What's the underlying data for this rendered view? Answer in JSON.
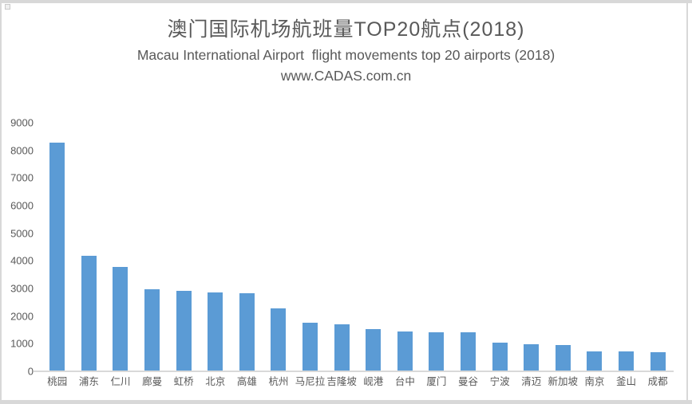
{
  "page": {
    "title_cn": "澳门国际机场航班量TOP20航点(2018)",
    "subtitle_en": "Macau International Airport  flight movements top 20 airports (2018)",
    "watermark": "www.CADAS.com.cn"
  },
  "colors": {
    "bar": "#5b9bd5",
    "axis_line": "#d9d9d9",
    "label_text": "#595959"
  },
  "chart_data": {
    "type": "bar",
    "title": "澳门国际机场航班量TOP20航点(2018)",
    "subtitle": "Macau International Airport  flight movements top 20 airports (2018)",
    "source_watermark": "www.CADAS.com.cn",
    "categories": [
      "桃园",
      "浦东",
      "仁川",
      "廊曼",
      "虹桥",
      "北京",
      "高雄",
      "杭州",
      "马尼拉",
      "吉隆坡",
      "岘港",
      "台中",
      "厦门",
      "曼谷",
      "宁波",
      "清迈",
      "新加坡",
      "南京",
      "釜山",
      "成都"
    ],
    "values": [
      8270,
      4180,
      3780,
      2960,
      2900,
      2870,
      2840,
      2290,
      1770,
      1690,
      1530,
      1450,
      1420,
      1410,
      1040,
      990,
      940,
      720,
      710,
      700
    ],
    "xlabel": "",
    "ylabel": "",
    "ylim": [
      0,
      9000
    ],
    "yticks": [
      0,
      1000,
      2000,
      3000,
      4000,
      5000,
      6000,
      7000,
      8000,
      9000
    ],
    "grid": false,
    "legend": false,
    "bar_color": "#5b9bd5"
  }
}
